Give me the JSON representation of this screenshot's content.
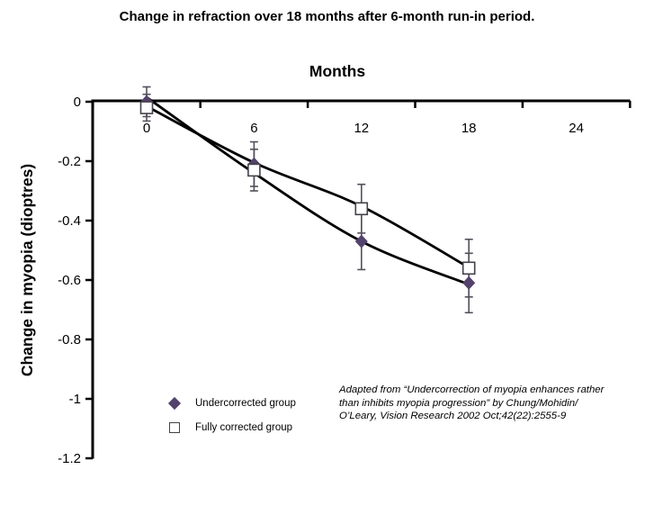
{
  "page": {
    "title": "Change in refraction over 18 months after 6-month run-in period."
  },
  "chart_data": {
    "type": "line",
    "title": "Change in refraction over 18 months after 6-month run-in period.",
    "xlabel": "Months",
    "ylabel": "Change in myopia (dioptres)",
    "x_ticks": [
      0,
      6,
      12,
      18,
      24
    ],
    "y_ticks": [
      0,
      -0.2,
      -0.4,
      -0.6,
      -0.8,
      -1,
      -1.2
    ],
    "xlim": [
      -3,
      27
    ],
    "ylim": [
      -1.2,
      0.05
    ],
    "grid": false,
    "legend_position": "bottom-left",
    "axis_color": "#000000",
    "error_bar_color": "#55505c",
    "series": [
      {
        "name": "Undercorrected group",
        "marker": "diamond",
        "color": "#53426b",
        "line_color": "#000000",
        "x": [
          0,
          6,
          12,
          18
        ],
        "y": [
          0.0,
          -0.21,
          -0.47,
          -0.61
        ],
        "err": [
          0.05,
          0.075,
          0.095,
          0.1
        ],
        "trend": [
          [
            0,
            0.015
          ],
          [
            6,
            -0.24
          ],
          [
            12,
            -0.47
          ],
          [
            18,
            -0.615
          ]
        ]
      },
      {
        "name": "Fully corrected group",
        "marker": "square",
        "color": "#ffffff",
        "stroke": "#45414b",
        "line_color": "#000000",
        "x": [
          0,
          6,
          12,
          18
        ],
        "y": [
          -0.02,
          -0.23,
          -0.36,
          -0.56
        ],
        "err": [
          0.045,
          0.07,
          0.082,
          0.097
        ],
        "trend": [
          [
            0,
            -0.015
          ],
          [
            6,
            -0.205
          ],
          [
            12,
            -0.352
          ],
          [
            18,
            -0.558
          ]
        ]
      }
    ]
  },
  "annotation": {
    "lines": [
      "Adapted from “Undercorrection of myopia enhances rather",
      "than inhibits myopia progression” by Chung/Mohidin/",
      "O’Leary, Vision Research 2002 Oct;42(22):2555-9"
    ]
  }
}
